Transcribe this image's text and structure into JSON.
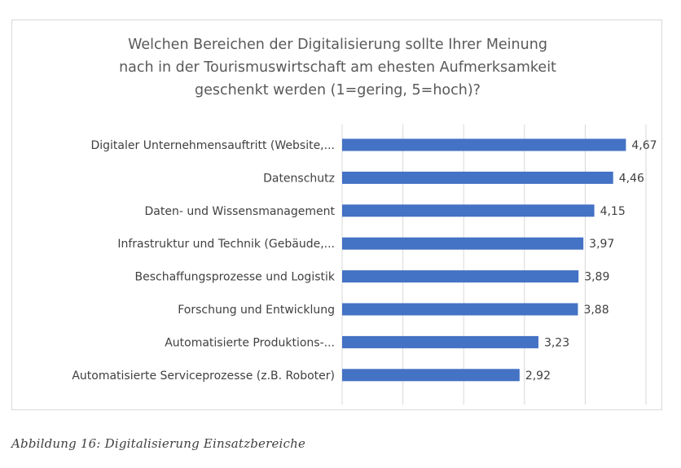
{
  "chart_data": {
    "type": "bar",
    "orientation": "horizontal",
    "title_lines": [
      "Welchen Bereichen der Digitalisierung  sollte Ihrer Meinung",
      "nach in der Tourismuswirtschaft  am ehesten Aufmerksamkeit",
      "geschenkt  werden (1=gering,  5=hoch)?"
    ],
    "categories": [
      "Digitaler Unternehmensauftritt (Website,...",
      "Datenschutz",
      "Daten- und Wissensmanagement",
      "Infrastruktur und Technik (Gebäude,...",
      "Beschaffungsprozesse und Logistik",
      "Forschung und Entwicklung",
      "Automatisierte Produktions-...",
      "Automatisierte Serviceprozesse (z.B. Roboter)"
    ],
    "values": [
      4.67,
      4.46,
      4.15,
      3.97,
      3.89,
      3.88,
      3.23,
      2.92
    ],
    "value_labels": [
      "4,67",
      "4,46",
      "4,15",
      "3,97",
      "3,89",
      "3,88",
      "3,23",
      "2,92"
    ],
    "xlim": [
      0,
      5
    ],
    "gridlines": "vertical",
    "bar_color": "#4472c4"
  },
  "caption": "Abbildung 16: Digitalisierung Einsatzbereiche"
}
